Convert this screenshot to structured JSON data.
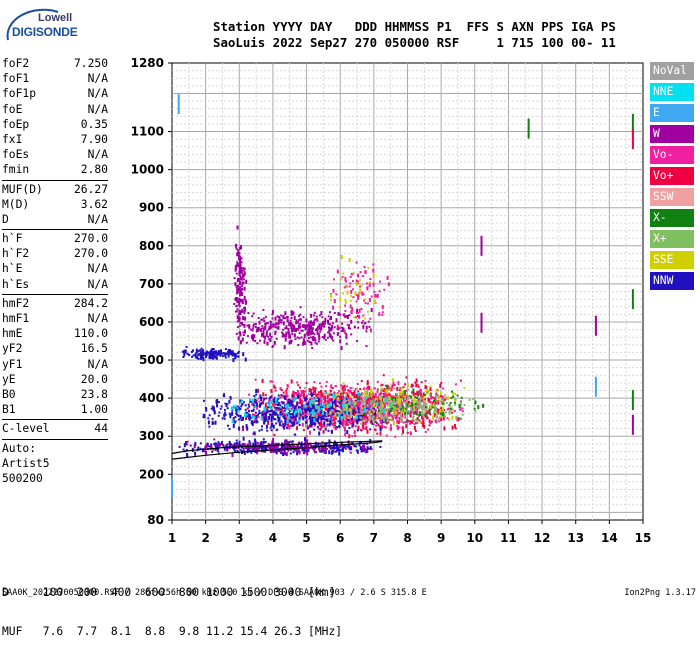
{
  "logo": {
    "line1": "Lowell",
    "line2": "DIGISONDE"
  },
  "header": {
    "line1": "Station YYYY DAY   DDD HHMMSS P1  FFS S AXN PPS IGA PS",
    "line2": "SaoLuis 2022 Sep27 270 050000 RSF     1 715 100 00- 11"
  },
  "params": [
    {
      "name": "foF2",
      "value": "7.250"
    },
    {
      "name": "foF1",
      "value": "N/A"
    },
    {
      "name": "foF1p",
      "value": "N/A"
    },
    {
      "name": "foE",
      "value": "N/A"
    },
    {
      "name": "foEp",
      "value": "0.35"
    },
    {
      "name": "fxI",
      "value": "7.90"
    },
    {
      "name": "foEs",
      "value": "N/A"
    },
    {
      "name": "fmin",
      "value": "2.80"
    },
    {
      "sep": true
    },
    {
      "name": "MUF(D)",
      "value": "26.27"
    },
    {
      "name": "M(D)",
      "value": "3.62"
    },
    {
      "name": "D",
      "value": "N/A"
    },
    {
      "sep": true
    },
    {
      "name": "h`F",
      "value": "270.0"
    },
    {
      "name": "h`F2",
      "value": "270.0"
    },
    {
      "name": "h`E",
      "value": "N/A"
    },
    {
      "name": "h`Es",
      "value": "N/A"
    },
    {
      "sep": true
    },
    {
      "name": "hmF2",
      "value": "284.2"
    },
    {
      "name": "hmF1",
      "value": "N/A"
    },
    {
      "name": "hmE",
      "value": "110.0"
    },
    {
      "name": "yF2",
      "value": "16.5"
    },
    {
      "name": "yF1",
      "value": "N/A"
    },
    {
      "name": "yE",
      "value": "20.0"
    },
    {
      "name": "B0",
      "value": "23.8"
    },
    {
      "name": "B1",
      "value": "1.00"
    },
    {
      "sep": true
    },
    {
      "name": "C-level",
      "value": "44"
    },
    {
      "sep": true
    },
    {
      "text": "Auto:"
    },
    {
      "text": "Artist5"
    },
    {
      "text": "500200"
    }
  ],
  "legend": [
    {
      "label": "NoVal",
      "color": "#a0a0a0"
    },
    {
      "label": "NNE",
      "color": "#00e0f0"
    },
    {
      "label": "E",
      "color": "#40a8f0"
    },
    {
      "label": "W",
      "color": "#a000a0"
    },
    {
      "label": "Vo-",
      "color": "#f020a0"
    },
    {
      "label": "Vo+",
      "color": "#f00040"
    },
    {
      "label": "SSW",
      "color": "#f0a0a0"
    },
    {
      "label": "X-",
      "color": "#108010"
    },
    {
      "label": "X+",
      "color": "#80c060"
    },
    {
      "label": "SSE",
      "color": "#d0d000"
    },
    {
      "label": "NNW",
      "color": "#2010c0"
    }
  ],
  "bottom": {
    "row1": "D     100  200  400  600  800 1000 1500 3000 [km]",
    "row2": "MUF   7.6  7.7  8.1  8.8  9.8 11.2 15.4 26.3 [MHz]"
  },
  "footer": {
    "left": "SAA0K_2022270050000.RSF / 280fx256h 50 kHz 5.0 km / DPS-4 SAA0K 903 / 2.6 S 315.8 E",
    "right": "Ion2Png 1.3.17"
  },
  "chart_data": {
    "type": "scatter",
    "title": "",
    "xlabel": "",
    "ylabel": "",
    "x_ticks": [
      1,
      2,
      3,
      4,
      5,
      6,
      7,
      8,
      9,
      10,
      11,
      12,
      13,
      14,
      15
    ],
    "xlim": [
      1,
      15
    ],
    "y_ticks": [
      80,
      200,
      300,
      400,
      500,
      600,
      700,
      800,
      900,
      1000,
      1100,
      1280
    ],
    "ylim": [
      80,
      1280
    ],
    "grid": true,
    "trace_curve": {
      "x": [
        1.0,
        1.5,
        2.0,
        2.5,
        3.0,
        4.0,
        5.0,
        6.0,
        7.0,
        7.25
      ],
      "y": [
        255,
        262,
        266,
        270,
        272,
        276,
        280,
        284,
        287,
        288
      ]
    },
    "trace_curve_upper": {
      "x": [
        1.0,
        2.0,
        3.0,
        4.0,
        5.0,
        6.0,
        7.0,
        7.25
      ],
      "y": [
        240,
        250,
        258,
        264,
        270,
        277,
        283,
        286
      ]
    },
    "clusters": [
      {
        "name": "F2 trace",
        "x": [
          1.0,
          7.3
        ],
        "y": [
          250,
          300
        ],
        "color": "#2010c0",
        "density": 340
      },
      {
        "name": "F2 trace",
        "x": [
          1.0,
          7.3
        ],
        "y": [
          250,
          300
        ],
        "color": "#a000a0",
        "density": 160
      },
      {
        "name": "F2 spread",
        "x": [
          3.0,
          9.8
        ],
        "y": [
          290,
          470
        ],
        "color": "#f00040",
        "density": 820
      },
      {
        "name": "F2 spread",
        "x": [
          3.0,
          9.8
        ],
        "y": [
          290,
          470
        ],
        "color": "#f020a0",
        "density": 520
      },
      {
        "name": "F2 spread",
        "x": [
          1.5,
          7.5
        ],
        "y": [
          300,
          430
        ],
        "color": "#2010c0",
        "density": 520
      },
      {
        "name": "F2 spread",
        "x": [
          5.0,
          10.0
        ],
        "y": [
          320,
          460
        ],
        "color": "#d0d000",
        "density": 160
      },
      {
        "name": "F2 spread",
        "x": [
          5.5,
          10.5
        ],
        "y": [
          330,
          440
        ],
        "color": "#80c060",
        "density": 110
      },
      {
        "name": "F2 spread",
        "x": [
          2.0,
          8.0
        ],
        "y": [
          330,
          430
        ],
        "color": "#00e0f0",
        "density": 110
      },
      {
        "name": "F2 spread",
        "x": [
          6.0,
          10.5
        ],
        "y": [
          330,
          440
        ],
        "color": "#108010",
        "density": 70
      },
      {
        "name": "F2 spread",
        "x": [
          4.0,
          9.5
        ],
        "y": [
          300,
          440
        ],
        "color": "#a0a0a0",
        "density": 110
      },
      {
        "name": "second hop",
        "x": [
          1.2,
          3.2
        ],
        "y": [
          500,
          540
        ],
        "color": "#2010c0",
        "density": 140
      },
      {
        "name": "second hop",
        "x": [
          2.8,
          7.0
        ],
        "y": [
          520,
          650
        ],
        "color": "#a000a0",
        "density": 360
      },
      {
        "name": "second hop",
        "x": [
          2.8,
          3.2
        ],
        "y": [
          520,
          880
        ],
        "color": "#a000a0",
        "density": 150
      },
      {
        "name": "second hop",
        "x": [
          5.5,
          7.5
        ],
        "y": [
          560,
          800
        ],
        "color": "#f020a0",
        "density": 90
      },
      {
        "name": "second hop",
        "x": [
          5.5,
          7.5
        ],
        "y": [
          560,
          800
        ],
        "color": "#d0d000",
        "density": 30
      }
    ],
    "isolated": [
      {
        "x": 11.6,
        "y": 1108,
        "color": "#108010"
      },
      {
        "x": 14.7,
        "y": 1120,
        "color": "#108010"
      },
      {
        "x": 14.7,
        "y": 1080,
        "color": "#f00040"
      },
      {
        "x": 14.7,
        "y": 660,
        "color": "#108010"
      },
      {
        "x": 14.7,
        "y": 395,
        "color": "#108010"
      },
      {
        "x": 14.7,
        "y": 330,
        "color": "#a000a0"
      },
      {
        "x": 13.6,
        "y": 590,
        "color": "#a000a0"
      },
      {
        "x": 10.2,
        "y": 800,
        "color": "#a000a0"
      },
      {
        "x": 10.2,
        "y": 598,
        "color": "#a000a0"
      },
      {
        "x": 13.6,
        "y": 430,
        "color": "#40a8f0"
      },
      {
        "x": 1.2,
        "y": 1172,
        "color": "#40a8f0"
      },
      {
        "x": 1.0,
        "y": 165,
        "color": "#40a8f0"
      }
    ]
  }
}
